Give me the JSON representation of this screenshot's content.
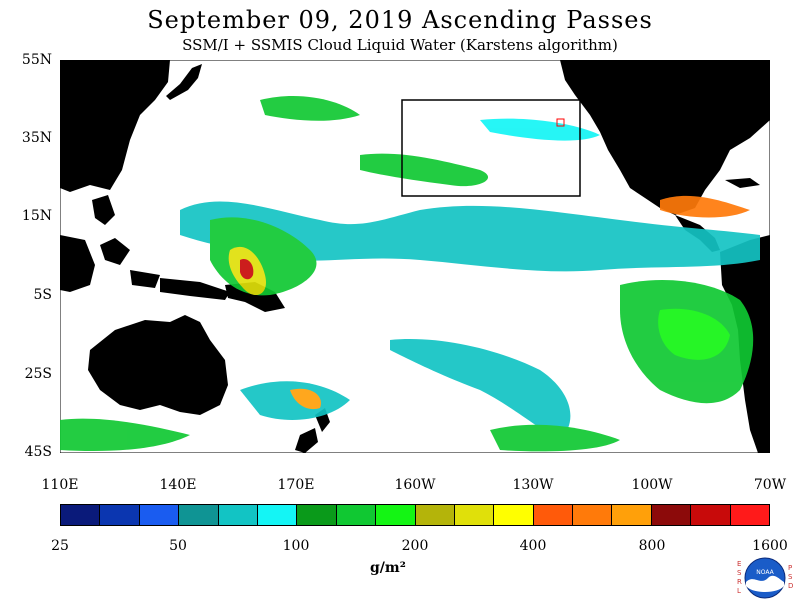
{
  "title": "September 09, 2019  Ascending Passes",
  "subtitle": "SSM/I + SSMIS Cloud Liquid Water (Karstens algorithm)",
  "lat_labels": [
    "55N",
    "35N",
    "15N",
    "5S",
    "25S",
    "45S"
  ],
  "lon_labels": [
    "110E",
    "140E",
    "170E",
    "160W",
    "130W",
    "100W",
    "70W"
  ],
  "colorbar": {
    "colors": [
      "#0a1a7a",
      "#0b36b0",
      "#1a5cf0",
      "#0f9494",
      "#12c4c4",
      "#14f5f5",
      "#0a9a1a",
      "#10c832",
      "#14f514",
      "#b4b40a",
      "#e0e00a",
      "#ffff00",
      "#ff5a0a",
      "#ff7a0a",
      "#ffa00a",
      "#8c0a0a",
      "#c80a0a",
      "#ff1a1a"
    ],
    "tick_labels": [
      "25",
      "50",
      "100",
      "200",
      "400",
      "800",
      "1600"
    ],
    "units": "g/m²"
  },
  "logo": {
    "left_letters": "ESRL",
    "right_letters": "PSD",
    "center_text": "NOAA"
  },
  "colors": {
    "land": "#000000",
    "ocean_clear": "#ffffff",
    "box": "#000000",
    "marker": "#ff0000"
  }
}
